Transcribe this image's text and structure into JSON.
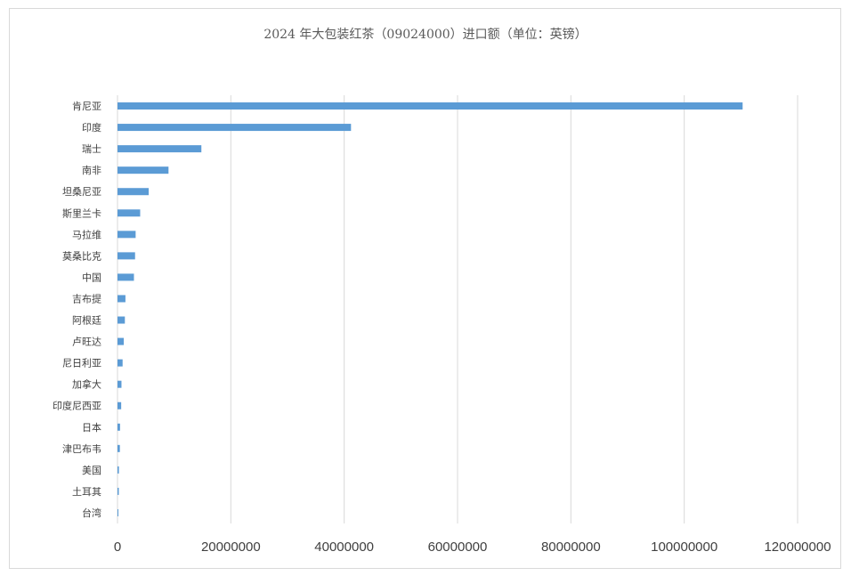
{
  "chart_data": {
    "type": "bar",
    "orientation": "horizontal",
    "title": "2024 年大包装红茶（09024000）进口额（单位：英镑）",
    "xlabel": "",
    "ylabel": "",
    "categories": [
      "肯尼亚",
      "印度",
      "瑞士",
      "南非",
      "坦桑尼亚",
      "斯里兰卡",
      "马拉维",
      "莫桑比克",
      "中国",
      "吉布提",
      "阿根廷",
      "卢旺达",
      "尼日利亚",
      "加拿大",
      "印度尼西亚",
      "日本",
      "津巴布韦",
      "美国",
      "土耳其",
      "台湾"
    ],
    "values": [
      110300000,
      41200000,
      14800000,
      9000000,
      5500000,
      4000000,
      3200000,
      3100000,
      2900000,
      1400000,
      1300000,
      1100000,
      900000,
      700000,
      650000,
      450000,
      420000,
      250000,
      230000,
      130000
    ],
    "xlim": [
      0,
      120000000
    ],
    "xticks": [
      0,
      20000000,
      40000000,
      60000000,
      80000000,
      100000000,
      120000000
    ],
    "xtick_labels": [
      "0",
      "20000000",
      "40000000",
      "60000000",
      "80000000",
      "100000000",
      "120000000"
    ],
    "grid": true,
    "legend": "none",
    "bar_color": "#5b9bd5"
  }
}
